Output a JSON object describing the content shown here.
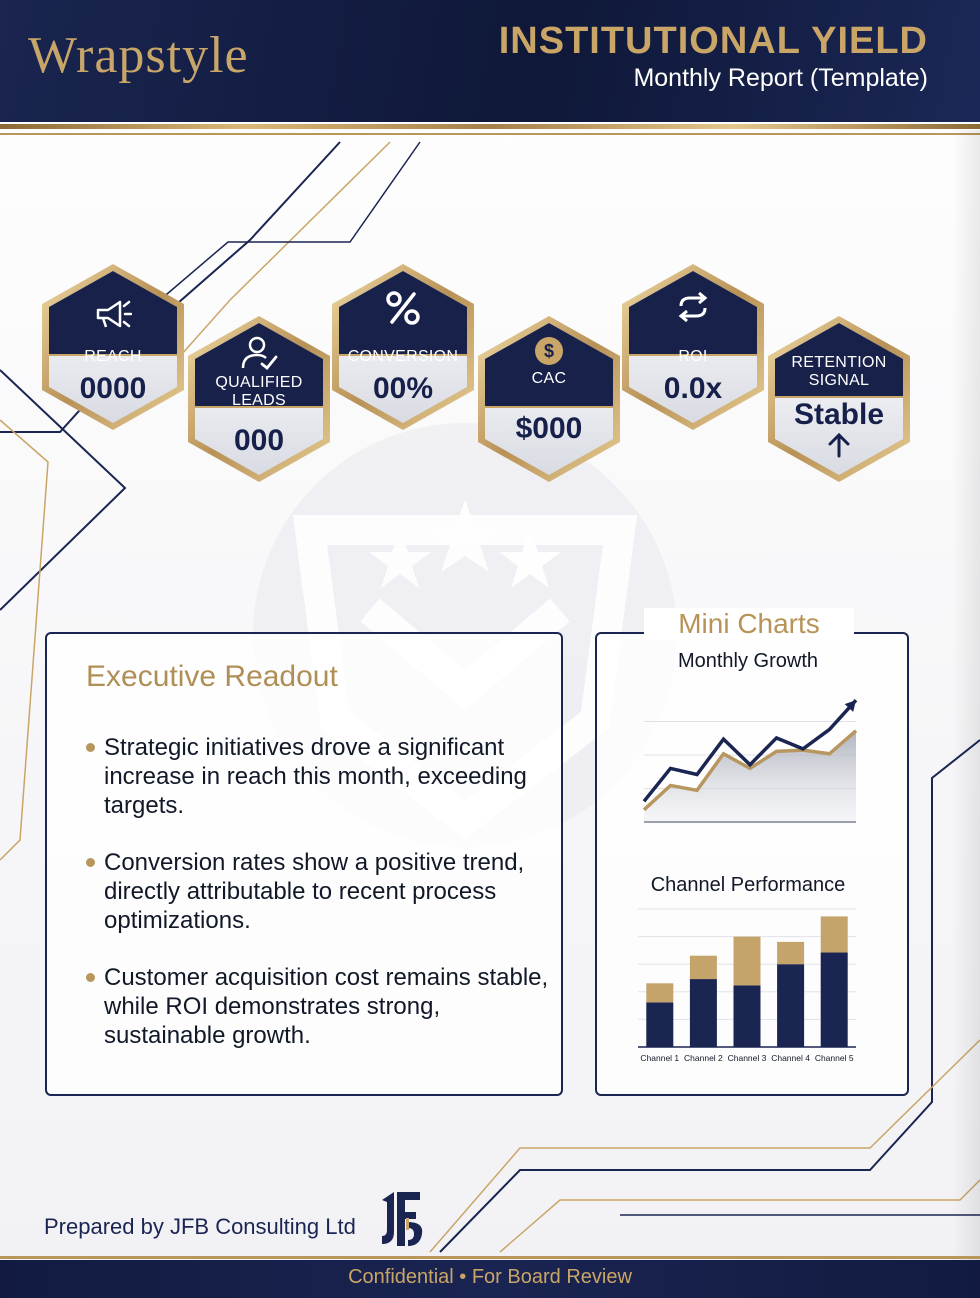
{
  "header": {
    "brand": "Wrapstyle",
    "title": "INSTITUTIONAL YIELD",
    "subtitle": "Monthly Report (Template)"
  },
  "kpis": [
    {
      "label": "REACH",
      "value": "0000",
      "icon": "megaphone-icon"
    },
    {
      "label": "QUALIFIED\nLEADS",
      "value": "000",
      "icon": "user-check-icon"
    },
    {
      "label": "CONVERSION",
      "value": "00%",
      "icon": "percent-icon"
    },
    {
      "label": "CAC",
      "value": "$000",
      "icon": "dollar-coin-icon"
    },
    {
      "label": "ROI",
      "value": "0.0x",
      "icon": "refresh-arrows-icon"
    },
    {
      "label": "RETENTION\nSIGNAL",
      "value": "Stable",
      "icon": "arrow-up-icon"
    }
  ],
  "executive": {
    "title": "Executive Readout",
    "bullets": [
      "Strategic initiatives drove a significant increase in reach this month, exceeding targets.",
      "Conversion rates show a positive trend, directly attributable to recent process optimizations.",
      "Customer acquisition cost remains stable, while ROI demonstrates strong, sustainable growth."
    ]
  },
  "mini_charts": {
    "title": "Mini Charts",
    "line_title": "Monthly Growth",
    "bar_title": "Channel Performance"
  },
  "chart_data": [
    {
      "type": "line",
      "title": "Monthly Growth",
      "x": [
        1,
        2,
        3,
        4,
        5,
        6,
        7,
        8,
        9
      ],
      "series": [
        {
          "values": [
            1,
            3,
            2.6,
            5.6,
            4.4,
            5.8,
            5.9,
            5.6,
            7.5
          ],
          "color": "#b89660"
        },
        {
          "values": [
            1.7,
            4.4,
            3.9,
            6.8,
            4.7,
            6.9,
            6.0,
            7.6,
            10
          ]
        }
      ],
      "ylim": [
        0,
        11
      ],
      "grid": true
    },
    {
      "type": "bar",
      "title": "Channel Performance",
      "categories": [
        "Channel 1",
        "Channel 2",
        "Channel 3",
        "Channel 4",
        "Channel 5"
      ],
      "series": [
        {
          "values": [
            4.2,
            6.4,
            5.8,
            7.8,
            8.9
          ],
          "color": "#1b2552"
        },
        {
          "values": [
            1.8,
            2.2,
            4.6,
            2.1,
            3.4
          ],
          "color": "#c4a46a"
        }
      ],
      "stacked": true,
      "ylim": [
        0,
        13
      ],
      "grid": true
    }
  ],
  "footer": {
    "prepared_by": "Prepared by JFB Consulting Ltd",
    "logo": "JFB",
    "note": "Confidential • For Board Review"
  }
}
